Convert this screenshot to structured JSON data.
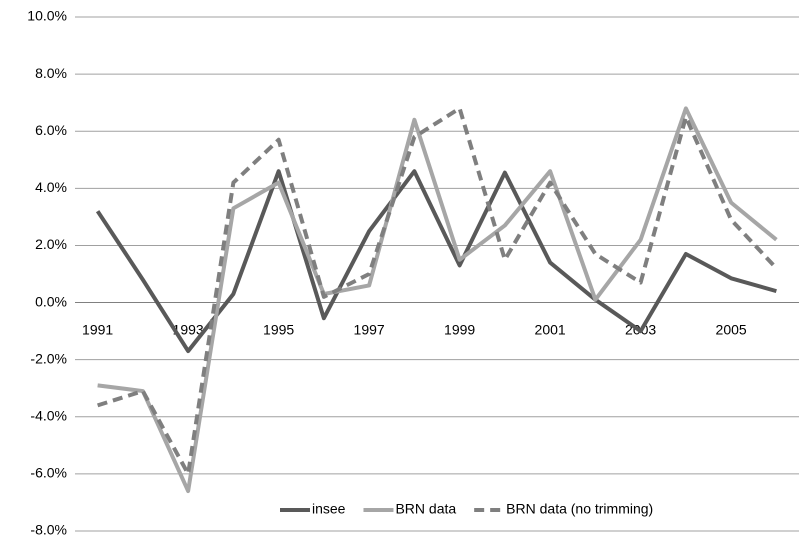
{
  "chart_data": {
    "type": "line",
    "categories": [
      "1991",
      null,
      "1993",
      null,
      "1995",
      null,
      "1997",
      null,
      "1999",
      null,
      "2001",
      null,
      "2003",
      null,
      "2005",
      null
    ],
    "series": [
      {
        "name": "insee",
        "color": "#595959",
        "dashed": false,
        "values": [
          3.2,
          0.8,
          -1.7,
          0.3,
          4.6,
          -0.55,
          2.5,
          4.6,
          1.3,
          4.55,
          1.4,
          0.1,
          -1.0,
          1.7,
          0.85,
          0.4
        ]
      },
      {
        "name": "BRN data",
        "color": "#a6a6a6",
        "dashed": false,
        "values": [
          -2.9,
          -3.1,
          -6.6,
          3.3,
          4.2,
          0.3,
          0.6,
          6.4,
          1.5,
          2.7,
          4.6,
          0.1,
          2.2,
          6.8,
          3.5,
          2.2
        ]
      },
      {
        "name": "BRN data (no trimming)",
        "color": "#7f7f7f",
        "dashed": true,
        "values": [
          -3.6,
          -3.1,
          -6.0,
          4.2,
          5.7,
          0.2,
          1.0,
          5.8,
          6.8,
          1.5,
          4.2,
          1.7,
          0.7,
          6.5,
          2.9,
          1.2
        ]
      }
    ],
    "ylim": [
      -8,
      10
    ],
    "yticks": [
      {
        "value": -8,
        "label": "-8.0%"
      },
      {
        "value": -6,
        "label": "-6.0%"
      },
      {
        "value": -4,
        "label": "-4.0%"
      },
      {
        "value": -2,
        "label": "-2.0%"
      },
      {
        "value": 0,
        "label": "0.0%"
      },
      {
        "value": 2,
        "label": "2.0%"
      },
      {
        "value": 4,
        "label": "4.0%"
      },
      {
        "value": 6,
        "label": "6.0%"
      },
      {
        "value": 8,
        "label": "8.0%"
      },
      {
        "value": 10,
        "label": "10.0%"
      }
    ],
    "grid": true,
    "legend": "bottom"
  }
}
